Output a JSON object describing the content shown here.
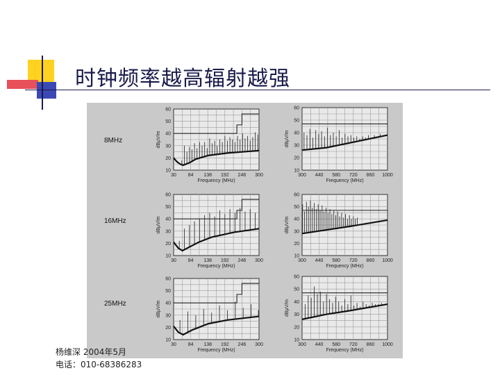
{
  "slide": {
    "title": "时钟频率越高辐射越强",
    "footer_line1": "杨维深   2004年5月",
    "footer_line2": "电话：010-68386283",
    "colors": {
      "yellow": "#ffd21f",
      "red": "#e8505a",
      "blue": "#3b49b4",
      "navy": "#1a1a4a",
      "panel": "#c9c9c9"
    }
  },
  "chart_data": [
    {
      "type": "line",
      "row_label": "8MHz",
      "xlabel": "Frequency (MHz)",
      "ylabel": "dBμV/m",
      "xlim": [
        30,
        300
      ],
      "ylim": [
        10,
        60
      ],
      "xticks": [
        "30",
        "84",
        "138",
        "192",
        "246",
        "300"
      ],
      "yticks": [
        "10",
        "20",
        "30",
        "40",
        "50",
        "60"
      ],
      "limit_steps": [
        [
          30,
          40
        ],
        [
          230,
          40
        ],
        [
          230,
          47
        ],
        [
          246,
          47
        ],
        [
          246,
          56
        ],
        [
          300,
          56
        ]
      ],
      "noise_floor": [
        [
          30,
          20
        ],
        [
          40,
          17
        ],
        [
          50,
          15
        ],
        [
          60,
          14
        ],
        [
          80,
          16
        ],
        [
          100,
          19
        ],
        [
          140,
          22
        ],
        [
          200,
          24
        ],
        [
          300,
          26
        ]
      ],
      "spikes": [
        [
          56,
          18
        ],
        [
          64,
          30
        ],
        [
          72,
          25
        ],
        [
          80,
          29
        ],
        [
          88,
          27
        ],
        [
          96,
          32
        ],
        [
          104,
          28
        ],
        [
          112,
          33
        ],
        [
          120,
          30
        ],
        [
          128,
          33
        ],
        [
          136,
          28
        ],
        [
          144,
          36
        ],
        [
          152,
          32
        ],
        [
          160,
          34
        ],
        [
          168,
          30
        ],
        [
          176,
          35
        ],
        [
          184,
          33
        ],
        [
          192,
          38
        ],
        [
          200,
          34
        ],
        [
          208,
          37
        ],
        [
          216,
          35
        ],
        [
          224,
          33
        ],
        [
          232,
          38
        ],
        [
          240,
          35
        ],
        [
          248,
          40
        ],
        [
          256,
          36
        ],
        [
          264,
          38
        ],
        [
          272,
          34
        ],
        [
          280,
          37
        ],
        [
          288,
          41
        ],
        [
          296,
          39
        ]
      ]
    },
    {
      "type": "line",
      "row_label": "",
      "xlabel": "Frequency (MHz)",
      "ylabel": "dBμV/m",
      "xlim": [
        300,
        1000
      ],
      "ylim": [
        10,
        60
      ],
      "xticks": [
        "300",
        "440",
        "580",
        "720",
        "860",
        "1000"
      ],
      "yticks": [
        "10",
        "20",
        "30",
        "40",
        "50",
        "60"
      ],
      "limit_steps": [
        [
          300,
          47
        ],
        [
          1000,
          47
        ]
      ],
      "noise_floor": [
        [
          300,
          26
        ],
        [
          500,
          28
        ],
        [
          700,
          32
        ],
        [
          1000,
          38
        ]
      ],
      "spikes": [
        [
          316,
          40
        ],
        [
          340,
          38
        ],
        [
          364,
          43
        ],
        [
          388,
          36
        ],
        [
          412,
          42
        ],
        [
          436,
          39
        ],
        [
          460,
          41
        ],
        [
          484,
          37
        ],
        [
          508,
          44
        ],
        [
          532,
          38
        ],
        [
          556,
          40
        ],
        [
          580,
          37
        ],
        [
          604,
          42
        ],
        [
          628,
          36
        ],
        [
          652,
          39
        ],
        [
          676,
          37
        ],
        [
          700,
          38
        ],
        [
          724,
          36
        ],
        [
          748,
          37
        ],
        [
          772,
          35
        ],
        [
          796,
          37
        ],
        [
          820,
          36
        ],
        [
          844,
          38
        ],
        [
          868,
          36
        ],
        [
          892,
          38
        ],
        [
          916,
          37
        ],
        [
          940,
          39
        ],
        [
          964,
          38
        ]
      ]
    },
    {
      "type": "line",
      "row_label": "16MHz",
      "xlabel": "Frequency (MHz)",
      "ylabel": "dBμV/m",
      "xlim": [
        30,
        300
      ],
      "ylim": [
        10,
        60
      ],
      "xticks": [
        "30",
        "84",
        "138",
        "192",
        "246",
        "300"
      ],
      "yticks": [
        "10",
        "20",
        "30",
        "40",
        "50",
        "60"
      ],
      "limit_steps": [
        [
          30,
          40
        ],
        [
          230,
          40
        ],
        [
          230,
          47
        ],
        [
          246,
          47
        ],
        [
          246,
          56
        ],
        [
          300,
          56
        ]
      ],
      "noise_floor": [
        [
          30,
          21
        ],
        [
          45,
          16
        ],
        [
          58,
          14
        ],
        [
          80,
          17
        ],
        [
          110,
          21
        ],
        [
          150,
          25
        ],
        [
          220,
          29
        ],
        [
          300,
          32
        ]
      ],
      "spikes": [
        [
          48,
          22
        ],
        [
          64,
          32
        ],
        [
          80,
          35
        ],
        [
          96,
          38
        ],
        [
          112,
          40
        ],
        [
          128,
          43
        ],
        [
          144,
          45
        ],
        [
          160,
          42
        ],
        [
          176,
          47
        ],
        [
          192,
          44
        ],
        [
          208,
          48
        ],
        [
          224,
          45
        ],
        [
          240,
          49
        ],
        [
          256,
          46
        ],
        [
          272,
          48
        ],
        [
          288,
          45
        ]
      ]
    },
    {
      "type": "line",
      "row_label": "",
      "xlabel": "Frequency (MHz)",
      "ylabel": "dBμV/m",
      "xlim": [
        300,
        1000
      ],
      "ylim": [
        10,
        60
      ],
      "xticks": [
        "300",
        "440",
        "580",
        "720",
        "860",
        "1000"
      ],
      "yticks": [
        "10",
        "20",
        "30",
        "40",
        "50",
        "60"
      ],
      "limit_steps": [
        [
          300,
          47
        ],
        [
          1000,
          47
        ]
      ],
      "noise_floor": [
        [
          300,
          28
        ],
        [
          500,
          31
        ],
        [
          700,
          34
        ],
        [
          1000,
          39
        ]
      ],
      "spikes": [
        [
          304,
          52
        ],
        [
          320,
          46
        ],
        [
          336,
          54
        ],
        [
          352,
          50
        ],
        [
          368,
          55
        ],
        [
          384,
          49
        ],
        [
          400,
          53
        ],
        [
          416,
          48
        ],
        [
          432,
          52
        ],
        [
          448,
          47
        ],
        [
          464,
          51
        ],
        [
          480,
          46
        ],
        [
          496,
          49
        ],
        [
          512,
          45
        ],
        [
          528,
          48
        ],
        [
          544,
          44
        ],
        [
          560,
          47
        ],
        [
          576,
          43
        ],
        [
          592,
          46
        ],
        [
          608,
          42
        ],
        [
          624,
          45
        ],
        [
          640,
          41
        ],
        [
          656,
          44
        ],
        [
          672,
          40
        ],
        [
          688,
          43
        ],
        [
          704,
          40
        ],
        [
          720,
          42
        ],
        [
          736,
          40
        ],
        [
          752,
          41
        ]
      ]
    },
    {
      "type": "line",
      "row_label": "25MHz",
      "xlabel": "Frequency (MHz)",
      "ylabel": "dBμV/m",
      "xlim": [
        30,
        300
      ],
      "ylim": [
        10,
        60
      ],
      "xticks": [
        "30",
        "84",
        "138",
        "192",
        "246",
        "300"
      ],
      "yticks": [
        "10",
        "20",
        "30",
        "40",
        "50",
        "60"
      ],
      "limit_steps": [
        [
          30,
          40
        ],
        [
          230,
          40
        ],
        [
          230,
          47
        ],
        [
          246,
          47
        ],
        [
          246,
          56
        ],
        [
          300,
          56
        ]
      ],
      "noise_floor": [
        [
          30,
          21
        ],
        [
          45,
          16
        ],
        [
          60,
          14
        ],
        [
          90,
          18
        ],
        [
          140,
          23
        ],
        [
          200,
          26
        ],
        [
          300,
          29
        ]
      ],
      "spikes": [
        [
          50,
          26
        ],
        [
          75,
          33
        ],
        [
          100,
          30
        ],
        [
          125,
          35
        ],
        [
          150,
          32
        ],
        [
          175,
          38
        ],
        [
          200,
          34
        ],
        [
          225,
          41
        ],
        [
          250,
          36
        ],
        [
          275,
          39
        ],
        [
          298,
          34
        ]
      ]
    },
    {
      "type": "line",
      "row_label": "",
      "xlabel": "Frequency (MHz)",
      "ylabel": "dBμV/m",
      "xlim": [
        300,
        1000
      ],
      "ylim": [
        10,
        60
      ],
      "xticks": [
        "300",
        "440",
        "580",
        "720",
        "860",
        "1000"
      ],
      "yticks": [
        "10",
        "20",
        "30",
        "40",
        "50",
        "60"
      ],
      "limit_steps": [
        [
          300,
          47
        ],
        [
          1000,
          47
        ]
      ],
      "noise_floor": [
        [
          300,
          26
        ],
        [
          500,
          30
        ],
        [
          700,
          33
        ],
        [
          1000,
          38
        ]
      ],
      "spikes": [
        [
          325,
          38
        ],
        [
          350,
          45
        ],
        [
          375,
          43
        ],
        [
          400,
          52
        ],
        [
          425,
          46
        ],
        [
          450,
          48
        ],
        [
          475,
          40
        ],
        [
          500,
          46
        ],
        [
          525,
          42
        ],
        [
          550,
          39
        ],
        [
          575,
          44
        ],
        [
          600,
          40
        ],
        [
          625,
          37
        ],
        [
          650,
          42
        ],
        [
          675,
          38
        ],
        [
          700,
          45
        ],
        [
          725,
          37
        ],
        [
          750,
          39
        ],
        [
          775,
          36
        ],
        [
          800,
          40
        ],
        [
          825,
          38
        ],
        [
          850,
          37
        ],
        [
          875,
          39
        ],
        [
          900,
          38
        ],
        [
          925,
          38
        ],
        [
          950,
          39
        ]
      ]
    }
  ]
}
